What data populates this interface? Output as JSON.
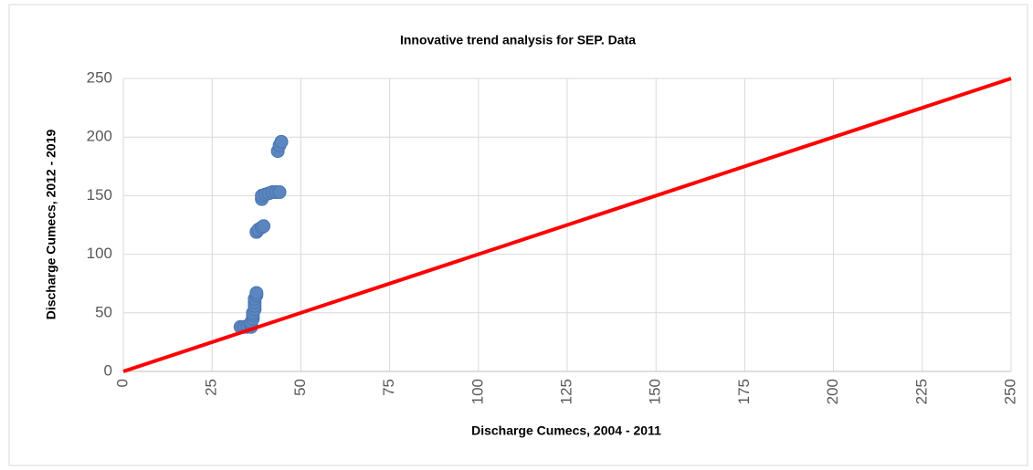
{
  "chart_data": {
    "type": "scatter",
    "title": "Innovative trend analysis for SEP. Data",
    "x_label": "Discharge Cumecs, 2004 - 2011",
    "y_label": "Discharge Cumecs, 2012 - 2019",
    "xlim": [
      0,
      250
    ],
    "xticks": [
      0,
      25,
      50,
      75,
      100,
      125,
      150,
      175,
      200,
      225,
      250
    ],
    "ylim": [
      0,
      250
    ],
    "yticks": [
      0,
      50,
      100,
      150,
      200,
      250
    ],
    "grid": true,
    "series": [
      {
        "color": "#5b86c0",
        "x": [
          33,
          34,
          35,
          36,
          36,
          36,
          36.5,
          36.5,
          36.5,
          37,
          37,
          37,
          37,
          37.5,
          37.5,
          37.5,
          38,
          39,
          39.5,
          39,
          39,
          40,
          41,
          42,
          43,
          44,
          43.5,
          44,
          44.5
        ],
        "values": [
          38,
          38,
          38,
          38,
          40,
          42,
          45,
          48,
          50,
          53,
          56,
          59,
          62,
          65,
          67,
          119,
          121,
          123,
          124,
          147,
          150,
          151,
          152,
          153,
          153,
          153,
          188,
          193,
          196
        ]
      }
    ],
    "trend_line": {
      "color": "#ff0000",
      "x": [
        0,
        250
      ],
      "values": [
        0,
        250
      ]
    }
  }
}
